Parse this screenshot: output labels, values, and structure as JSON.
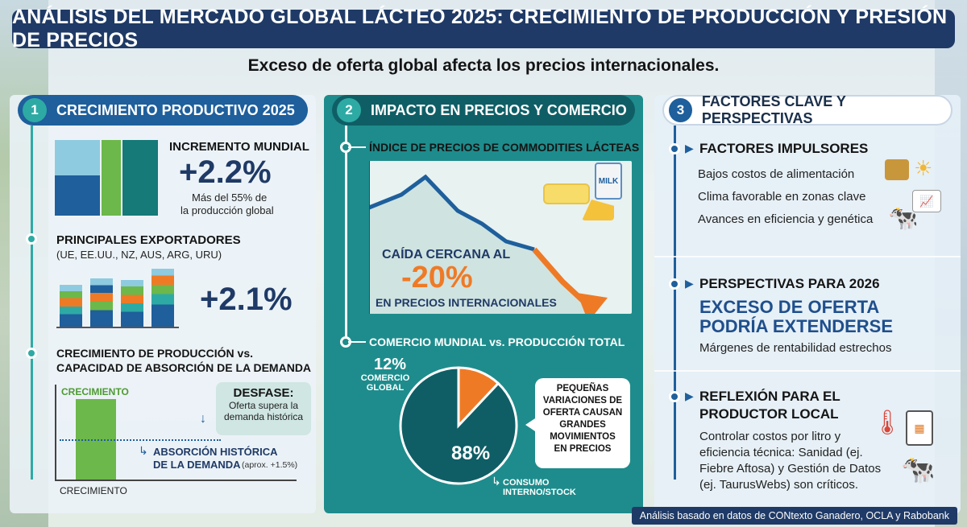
{
  "title": "ANÁLISIS DEL MERCADO GLOBAL LÁCTEO 2025: CRECIMIENTO DE PRODUCCIÓN Y PRESIÓN DE PRECIOS",
  "subtitle": "Exceso de oferta global afecta los precios internacionales.",
  "panel1": {
    "number": "1",
    "heading": "CRECIMIENTO PRODUCTIVO 2025",
    "global_increase": {
      "label": "INCREMENTO MUNDIAL",
      "value": "+2.2%",
      "note_line1": "Más del 55% de",
      "note_line2": "la producción global"
    },
    "exporters": {
      "title": "PRINCIPALES EXPORTADORES",
      "list": "(UE, EE.UU., NZ, AUS, ARG, URU)",
      "value": "+2.1%"
    },
    "growth_vs_demand": {
      "title_line1": "CRECIMIENTO DE PRODUCCIÓN vs.",
      "title_line2": "CAPACIDAD DE ABSORCIÓN DE LA DEMANDA",
      "bar_label": "CRECIMIENTO",
      "x_label": "CRECIMIENTO",
      "gap_title": "DESFASE:",
      "gap_line1": "Oferta supera la",
      "gap_line2": "demanda histórica",
      "absorption_line1": "ABSORCIÓN HISTÓRICA",
      "absorption_line2": "DE LA DEMANDA",
      "absorption_note": "(aprox. +1.5%)"
    }
  },
  "panel2": {
    "number": "2",
    "heading": "IMPACTO EN PRECIOS Y COMERCIO",
    "price_index": {
      "title": "ÍNDICE DE PRECIOS DE COMMODITIES LÁCTEAS",
      "drop_line1": "CAÍDA CERCANA AL",
      "drop_value": "-20%",
      "drop_line2": "EN PRECIOS INTERNACIONALES",
      "milk_label": "MILK"
    },
    "trade": {
      "title": "COMERCIO MUNDIAL vs. PRODUCCIÓN TOTAL",
      "trade_pct": "12%",
      "trade_label_line1": "COMERCIO",
      "trade_label_line2": "GLOBAL",
      "domestic_pct": "88%",
      "domestic_label_line1": "CONSUMO",
      "domestic_label_line2": "INTERNO/STOCK",
      "callout_line1": "PEQUEÑAS",
      "callout_line2": "VARIACIONES DE",
      "callout_line3": "OFERTA CAUSAN",
      "callout_line4": "GRANDES",
      "callout_line5": "MOVIMIENTOS",
      "callout_line6": "EN PRECIOS"
    }
  },
  "panel3": {
    "number": "3",
    "heading": "FACTORES CLAVE Y PERSPECTIVAS",
    "drivers": {
      "title": "FACTORES IMPULSORES",
      "items": [
        "Bajos costos de alimentación",
        "Clima favorable en zonas clave",
        "Avances en eficiencia y genética"
      ]
    },
    "outlook": {
      "title": "PERSPECTIVAS PARA 2026",
      "big_line1": "EXCESO DE OFERTA",
      "big_line2": "PODRÍA EXTENDERSE",
      "note": "Márgenes de rentabilidad estrechos"
    },
    "reflection": {
      "title_line1": "REFLEXIÓN PARA EL",
      "title_line2": "PRODUCTOR LOCAL",
      "line1": "Controlar costos por litro y",
      "line2": "eficiencia técnica: Sanidad (ej.",
      "line3": "Fiebre Aftosa) y Gestión de Datos",
      "line4": "(ej. TaurusWebs) son críticos."
    }
  },
  "footer": "Análisis basado en datos de CONtexto Ganadero, OCLA y Rabobank",
  "colors": {
    "navy": "#1f3a66",
    "teal": "#1e8c8c",
    "orange": "#ef7a26",
    "green": "#6cb84a",
    "blue": "#1e5f9c"
  },
  "chart_data": [
    {
      "type": "pie",
      "title": "COMERCIO MUNDIAL vs. PRODUCCIÓN TOTAL",
      "categories": [
        "COMERCIO GLOBAL",
        "CONSUMO INTERNO/STOCK"
      ],
      "values": [
        12,
        88
      ]
    }
  ]
}
